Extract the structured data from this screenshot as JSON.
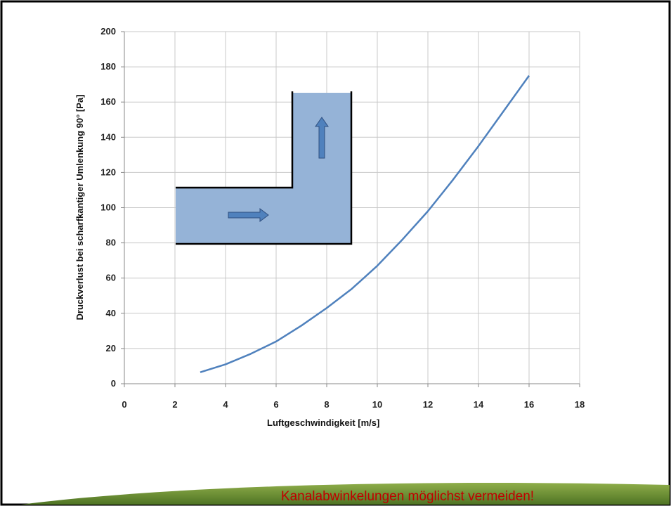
{
  "chart_data": {
    "type": "line",
    "x_label": "Luftgeschwindigkeit [m/s]",
    "y_label": "Druckverlust bei scharfkantiger Umlenkung 90° [Pa]",
    "x": [
      3,
      4,
      5,
      6,
      7,
      8,
      9,
      10,
      11,
      12,
      13,
      14,
      15,
      16
    ],
    "series": [
      {
        "color": "#4f81bd",
        "values": [
          6.5,
          11,
          17,
          24,
          33,
          43,
          54,
          67,
          82,
          98,
          116,
          135,
          155,
          175
        ]
      }
    ],
    "xlim": [
      0,
      18
    ],
    "xticks": [
      0,
      2,
      4,
      6,
      8,
      10,
      12,
      14,
      16,
      18
    ],
    "ylim": [
      0,
      200
    ],
    "yticks": [
      0,
      20,
      40,
      60,
      80,
      100,
      120,
      140,
      160,
      180,
      200
    ],
    "grid": true
  },
  "slide_caption": "Kanalabwinkelungen möglichst vermeiden!"
}
